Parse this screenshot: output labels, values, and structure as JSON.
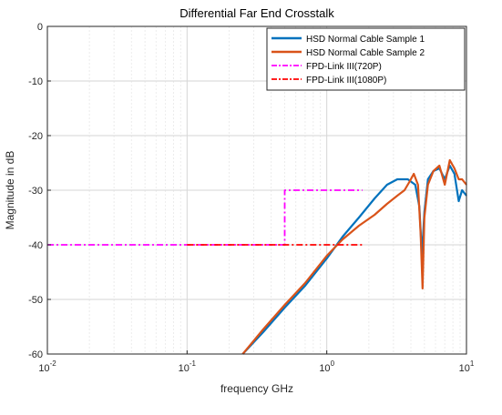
{
  "chart_data": {
    "type": "line",
    "title": "Differential Far End Crosstalk",
    "xlabel": "frequency GHz",
    "ylabel": "Magnitude in dB",
    "x_scale": "log",
    "xlim": [
      0.01,
      10
    ],
    "ylim": [
      -60,
      0
    ],
    "grid": true,
    "legend_position": "top-right",
    "x_ticks": [
      {
        "value": 0.01,
        "base": "10",
        "exp": "-2"
      },
      {
        "value": 0.1,
        "base": "10",
        "exp": "-1"
      },
      {
        "value": 1,
        "base": "10",
        "exp": "0"
      },
      {
        "value": 10,
        "base": "10",
        "exp": "1"
      }
    ],
    "y_ticks": [
      0,
      -10,
      -20,
      -30,
      -40,
      -50,
      -60
    ],
    "y_tick_labels": [
      "0",
      "-10",
      "-20",
      "-30",
      "-40",
      "-50",
      "-60"
    ],
    "series": [
      {
        "name": "HSD Normal Cable Sample 1",
        "color": "#0072BD",
        "style": "solid",
        "x": [
          0.25,
          0.35,
          0.5,
          0.7,
          1.0,
          1.3,
          1.7,
          2.2,
          2.7,
          3.2,
          3.8,
          4.3,
          4.6,
          4.8,
          5.0,
          5.3,
          5.8,
          6.4,
          7.0,
          7.6,
          8.2,
          8.8,
          9.3,
          10
        ],
        "y": [
          -60,
          -56,
          -51.5,
          -47.5,
          -42.5,
          -38.5,
          -35,
          -31.5,
          -29,
          -28,
          -28,
          -29,
          -33,
          -42,
          -34,
          -28,
          -26.5,
          -26,
          -28,
          -25.5,
          -27,
          -32,
          -30,
          -31
        ]
      },
      {
        "name": "HSD Normal Cable Sample 2",
        "color": "#D95319",
        "style": "solid",
        "x": [
          0.25,
          0.35,
          0.5,
          0.7,
          1.0,
          1.3,
          1.7,
          2.2,
          2.7,
          3.2,
          3.6,
          3.9,
          4.2,
          4.5,
          4.7,
          4.85,
          5.0,
          5.3,
          5.8,
          6.4,
          7.0,
          7.6,
          8.2,
          8.8,
          9.3,
          10
        ],
        "y": [
          -60,
          -55.5,
          -51,
          -47,
          -42,
          -39,
          -36.5,
          -34.5,
          -32.5,
          -31,
          -30,
          -28.5,
          -27,
          -29,
          -38,
          -48,
          -35,
          -29,
          -26.5,
          -25.5,
          -29,
          -24.5,
          -26,
          -28,
          -28,
          -29
        ]
      },
      {
        "name": "FPD-Link III(720P)",
        "color": "#FF00FF",
        "style": "dashdot",
        "x": [
          0.01,
          0.5,
          0.5,
          1.8
        ],
        "y": [
          -40,
          -40,
          -30,
          -30
        ]
      },
      {
        "name": "FPD-Link III(1080P)",
        "color": "#FF0000",
        "style": "dashdot",
        "x": [
          0.1,
          1.8
        ],
        "y": [
          -40,
          -40
        ]
      }
    ]
  }
}
